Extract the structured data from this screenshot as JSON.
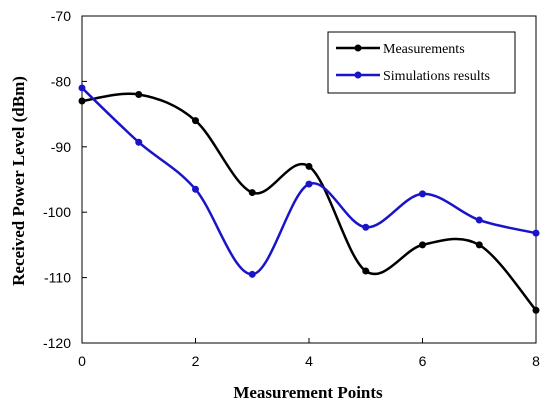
{
  "chart_data": {
    "type": "line",
    "title": "",
    "xlabel": "Measurement Points",
    "ylabel": "Received Power Level (dBm)",
    "xlim": [
      0,
      8
    ],
    "ylim": [
      -120,
      -70
    ],
    "x_ticks": [
      "0",
      "2",
      "4",
      "6",
      "8"
    ],
    "y_ticks": [
      "-70",
      "-80",
      "-90",
      "-100",
      "-110",
      "-120"
    ],
    "grid": false,
    "legend_position": "top-right",
    "x": [
      0,
      1,
      2,
      3,
      4,
      5,
      6,
      7,
      8
    ],
    "series": [
      {
        "name": "Measurements",
        "color": "#000000",
        "values": [
          -83,
          -82,
          -86,
          -97,
          -93,
          -109,
          -105,
          -105,
          -115
        ]
      },
      {
        "name": "Simulations results",
        "color": "#1a14c8",
        "values": [
          -81,
          -89.3,
          -96.5,
          -109.5,
          -95.7,
          -102.3,
          -97.2,
          -101.2,
          -103.2
        ]
      }
    ]
  }
}
